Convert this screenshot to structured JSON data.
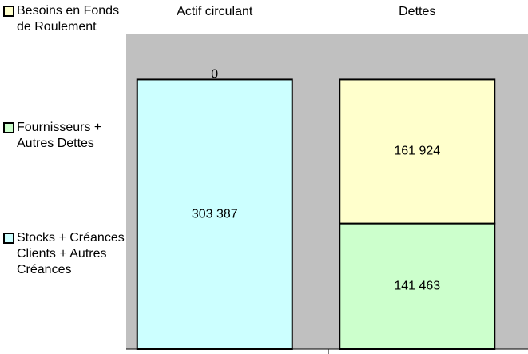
{
  "chart_data": {
    "type": "stacked_bar",
    "categories": [
      "Actif circulant",
      "Dettes"
    ],
    "series": [
      {
        "name": "Stocks + Créances Clients + Autres Créances",
        "color": "#ccffff",
        "values": [
          303387,
          null
        ],
        "value_labels": [
          "303 387",
          null
        ]
      },
      {
        "name": "Fournisseurs + Autres Dettes",
        "color": "#ccffcc",
        "values": [
          null,
          141463
        ],
        "value_labels": [
          null,
          "141 463"
        ]
      },
      {
        "name": "Besoins en Fonds de Roulement",
        "color": "#ffffcc",
        "values": [
          0,
          161924
        ],
        "value_labels": [
          "0",
          "161 924"
        ]
      }
    ],
    "ylim": [
      0,
      355000
    ],
    "plot_background": "#c0c0c0"
  }
}
